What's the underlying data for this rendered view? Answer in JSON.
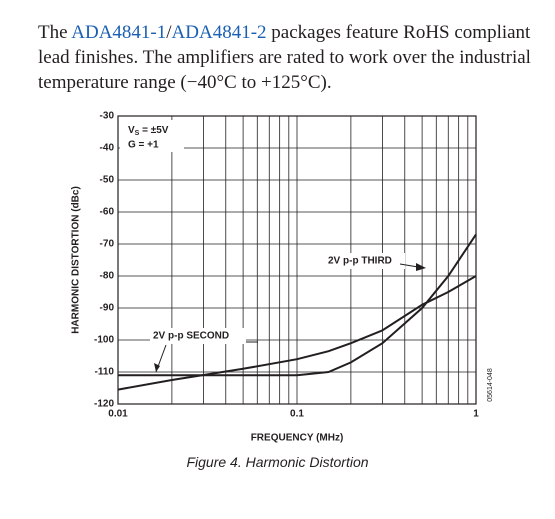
{
  "paragraph": [
    "The ",
    "ADA4841-1",
    "/",
    "ADA4841-2",
    " packages feature RoHS compliant lead finishes. The amplifiers are rated to work over the industrial temperature range (−40°C to +125°C)."
  ],
  "chart_data": {
    "type": "line",
    "xlabel": "FREQUENCY (MHz)",
    "ylabel": "HARMONIC DISTORTION (dBc)",
    "x": [
      0.01,
      0.02,
      0.05,
      0.1,
      0.15,
      0.2,
      0.3,
      0.5,
      0.7,
      1
    ],
    "series": [
      {
        "name": "2V p-p SECOND",
        "color": "#231f20",
        "values": [
          -115.5,
          -112.5,
          -109,
          -106,
          -103.5,
          -101,
          -97,
          -89,
          -85,
          -80
        ]
      },
      {
        "name": "2V p-p THIRD",
        "color": "#231f20",
        "values": [
          -111,
          -111,
          -111,
          -111,
          -110,
          -107,
          -101,
          -90,
          -80,
          -67
        ]
      }
    ],
    "xscale": "log",
    "xlim": [
      0.01,
      1
    ],
    "xticks": [
      0.01,
      0.1,
      1
    ],
    "x_grid": [
      0.02,
      0.03,
      0.04,
      0.05,
      0.06,
      0.07,
      0.08,
      0.09,
      0.2,
      0.3,
      0.4,
      0.5,
      0.6,
      0.7,
      0.8,
      0.9
    ],
    "ylim": [
      -120,
      -30
    ],
    "yticks": [
      -120,
      -110,
      -100,
      -90,
      -80,
      -70,
      -60,
      -50,
      -40,
      -30
    ],
    "grid": true,
    "conditions": {
      "v": "V",
      "sub": "S",
      "rest": " = ±5V",
      "gain": "G = +1"
    },
    "figure_id": "05614-048"
  },
  "caption": "Figure 4. Harmonic Distortion"
}
